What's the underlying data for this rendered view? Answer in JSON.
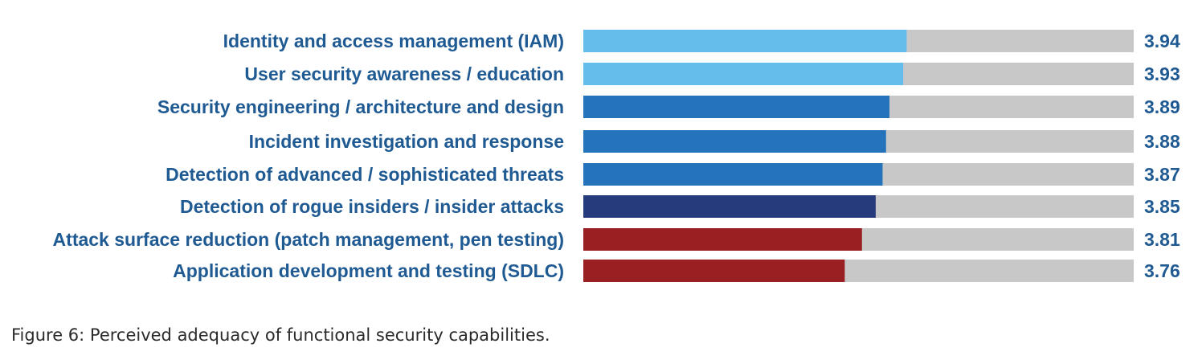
{
  "caption": "Figure 6: Perceived adequacy of functional security capabilities.",
  "chart_data": {
    "type": "bar",
    "orientation": "horizontal",
    "categories": [
      "Identity and access management (IAM)",
      "User security awareness / education",
      "Security engineering / architecture and design",
      "Incident investigation and response",
      "Detection of advanced / sophisticated threats",
      "Detection of rogue insiders / insider attacks",
      "Attack surface reduction (patch management, pen testing)",
      "Application development and testing (SDLC)"
    ],
    "values": [
      3.94,
      3.93,
      3.89,
      3.88,
      3.87,
      3.85,
      3.81,
      3.76
    ],
    "value_labels": [
      "3.94",
      "3.93",
      "3.89",
      "3.88",
      "3.87",
      "3.85",
      "3.81",
      "3.76"
    ],
    "bar_colors": [
      "#64bdeb",
      "#64bdeb",
      "#2574bb",
      "#2574bb",
      "#2574bb",
      "#263b7c",
      "#9a1f23",
      "#9a1f23"
    ],
    "track_color": "#c9c8c9",
    "label_color": "#1f5a93",
    "xlim": [
      3.0,
      4.6
    ],
    "title": "",
    "xlabel": "",
    "ylabel": "",
    "grid": false
  }
}
